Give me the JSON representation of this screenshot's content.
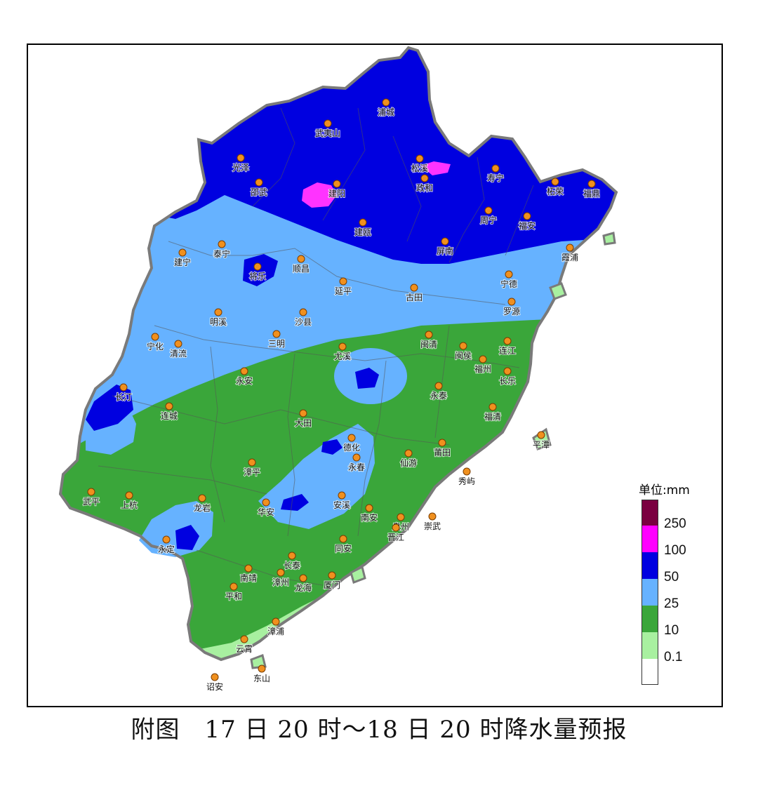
{
  "caption": "附图　17 日 20 时～18 日 20 时降水量预报",
  "legend": {
    "title": "单位:mm",
    "bins": [
      {
        "label": "250",
        "color": "#7a0040"
      },
      {
        "label": "100",
        "color": "#ff00ff"
      },
      {
        "label": "50",
        "color": "#0000e0"
      },
      {
        "label": "25",
        "color": "#66b2ff"
      },
      {
        "label": "10",
        "color": "#3aa63a"
      },
      {
        "label": "0.1",
        "color": "#a8f0a0"
      },
      {
        "label": "",
        "color": "#ffffff"
      }
    ]
  },
  "cities": [
    {
      "name": "浦城"
    },
    {
      "name": "武夷山"
    },
    {
      "name": "松溪"
    },
    {
      "name": "光泽"
    },
    {
      "name": "邵武"
    },
    {
      "name": "建阳"
    },
    {
      "name": "政和"
    },
    {
      "name": "寿宁"
    },
    {
      "name": "柘荣"
    },
    {
      "name": "福鼎"
    },
    {
      "name": "周宁"
    },
    {
      "name": "福安"
    },
    {
      "name": "建瓯"
    },
    {
      "name": "屏南"
    },
    {
      "name": "霞浦"
    },
    {
      "name": "建宁"
    },
    {
      "name": "泰宁"
    },
    {
      "name": "将乐"
    },
    {
      "name": "顺昌"
    },
    {
      "name": "延平"
    },
    {
      "name": "古田"
    },
    {
      "name": "宁德"
    },
    {
      "name": "罗源"
    },
    {
      "name": "明溪"
    },
    {
      "name": "沙县"
    },
    {
      "name": "三明"
    },
    {
      "name": "宁化"
    },
    {
      "name": "清流"
    },
    {
      "name": "尤溪"
    },
    {
      "name": "闽清"
    },
    {
      "name": "闽侯"
    },
    {
      "name": "连江"
    },
    {
      "name": "福州"
    },
    {
      "name": "长乐"
    },
    {
      "name": "永安"
    },
    {
      "name": "永泰"
    },
    {
      "name": "长汀"
    },
    {
      "name": "连城"
    },
    {
      "name": "大田"
    },
    {
      "name": "福清"
    },
    {
      "name": "平潭"
    },
    {
      "name": "德化"
    },
    {
      "name": "永春"
    },
    {
      "name": "仙游"
    },
    {
      "name": "莆田"
    },
    {
      "name": "漳平"
    },
    {
      "name": "秀屿"
    },
    {
      "name": "武平"
    },
    {
      "name": "上杭"
    },
    {
      "name": "龙岩"
    },
    {
      "name": "华安"
    },
    {
      "name": "安溪"
    },
    {
      "name": "南安"
    },
    {
      "name": "泉州"
    },
    {
      "name": "崇武"
    },
    {
      "name": "晋江"
    },
    {
      "name": "永定"
    },
    {
      "name": "同安"
    },
    {
      "name": "长泰"
    },
    {
      "name": "南靖"
    },
    {
      "name": "漳州"
    },
    {
      "name": "厦门"
    },
    {
      "name": "龙海"
    },
    {
      "name": "平和"
    },
    {
      "name": "漳浦"
    },
    {
      "name": "云霄"
    },
    {
      "name": "诏安"
    },
    {
      "name": "东山"
    }
  ]
}
